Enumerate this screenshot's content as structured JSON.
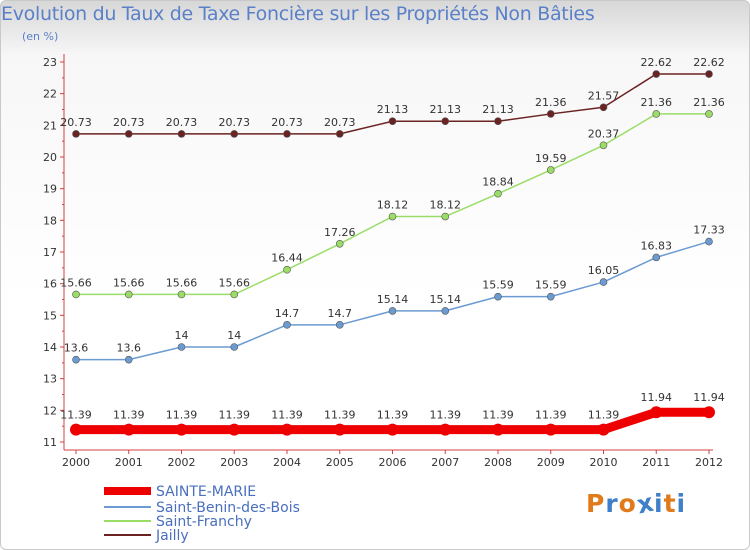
{
  "chart_data": {
    "type": "line",
    "title": "Evolution du Taux de Taxe Foncière sur les Propriétés Non Bâties",
    "unit_label": "(en %)",
    "x": [
      "2000",
      "2001",
      "2002",
      "2003",
      "2004",
      "2005",
      "2006",
      "2007",
      "2008",
      "2009",
      "2010",
      "2011",
      "2012"
    ],
    "yticks": [
      "11",
      "12",
      "13",
      "14",
      "15",
      "16",
      "17",
      "18",
      "19",
      "20",
      "21",
      "22",
      "23"
    ],
    "ylim": [
      11,
      23
    ],
    "grid": false,
    "legend_position": "bottom-left",
    "series": [
      {
        "name": "SAINTE-MARIE",
        "color": "#ee0000",
        "labels": [
          "11.39",
          "11.39",
          "11.39",
          "11.39",
          "11.39",
          "11.39",
          "11.39",
          "11.39",
          "11.39",
          "11.39",
          "11.39",
          "11.94",
          "11.94"
        ],
        "values": [
          11.39,
          11.39,
          11.39,
          11.39,
          11.39,
          11.39,
          11.39,
          11.39,
          11.39,
          11.39,
          11.39,
          11.94,
          11.94
        ]
      },
      {
        "name": "Saint-Benin-des-Bois",
        "color": "#6b9bd1",
        "labels": [
          "13.6",
          "13.6",
          "14",
          "14",
          "14.7",
          "14.7",
          "15.14",
          "15.14",
          "15.59",
          "15.59",
          "16.05",
          "16.83",
          "17.33"
        ],
        "values": [
          13.6,
          13.6,
          14,
          14,
          14.7,
          14.7,
          15.14,
          15.14,
          15.59,
          15.59,
          16.05,
          16.83,
          17.33
        ]
      },
      {
        "name": "Saint-Franchy",
        "color": "#99dd66",
        "labels": [
          "15.66",
          "15.66",
          "15.66",
          "15.66",
          "16.44",
          "17.26",
          "18.12",
          "18.12",
          "18.84",
          "19.59",
          "20.37",
          "21.36",
          "21.36"
        ],
        "values": [
          15.66,
          15.66,
          15.66,
          15.66,
          16.44,
          17.26,
          18.12,
          18.12,
          18.84,
          19.59,
          20.37,
          21.36,
          21.36
        ]
      },
      {
        "name": "Jailly",
        "color": "#6b2222",
        "labels": [
          "20.73",
          "20.73",
          "20.73",
          "20.73",
          "20.73",
          "20.73",
          "21.13",
          "21.13",
          "21.13",
          "21.36",
          "21.57",
          "22.62",
          "22.62"
        ],
        "values": [
          20.73,
          20.73,
          20.73,
          20.73,
          20.73,
          20.73,
          21.13,
          21.13,
          21.13,
          21.36,
          21.57,
          22.62,
          22.62
        ]
      }
    ]
  },
  "branding": {
    "text": "Proxiti",
    "letter_colors": [
      "#e07a1a",
      "#3f80c8",
      "#e07a1a",
      "#3f80c8",
      "#3f80c8",
      "#e07a1a",
      "#3f80c8"
    ]
  }
}
